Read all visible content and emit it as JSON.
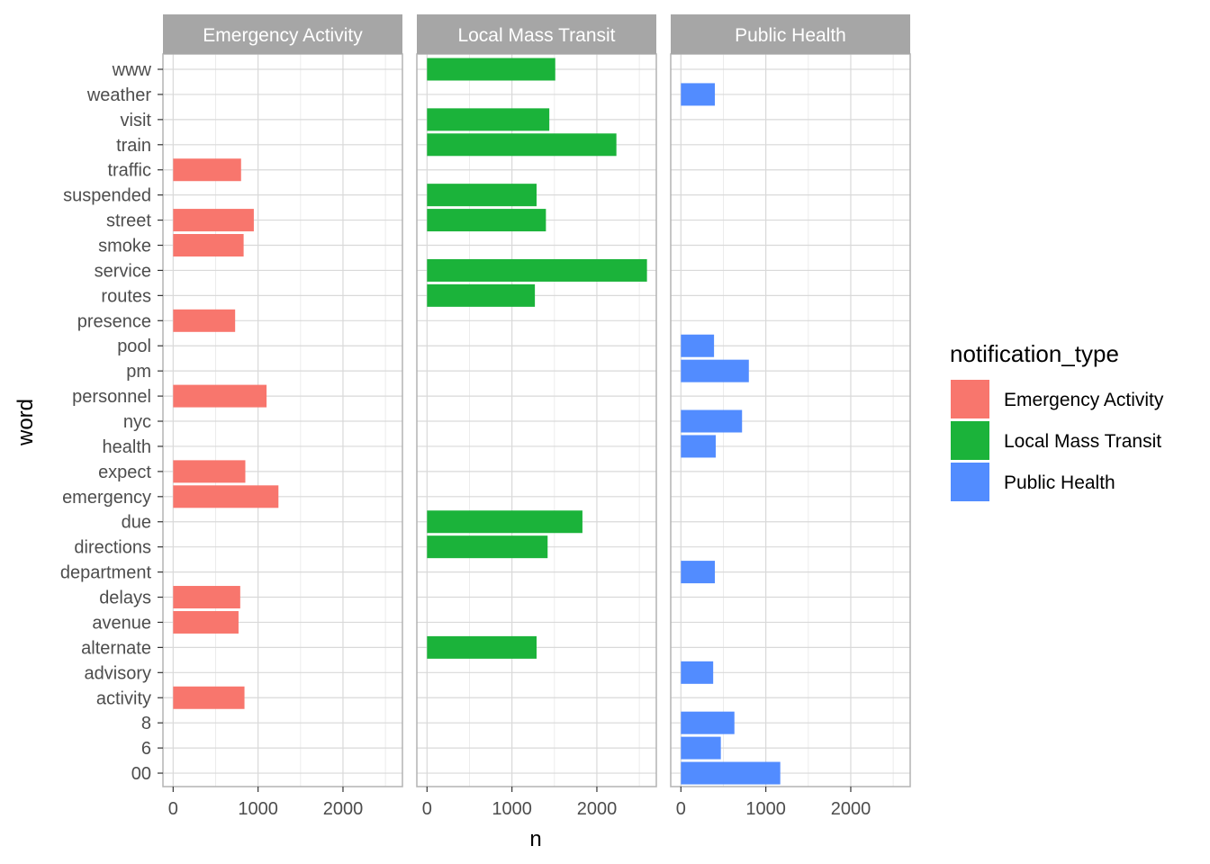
{
  "chart_data": {
    "type": "bar",
    "orientation": "horizontal",
    "facet_by": "notification_type",
    "xlabel": "n",
    "ylabel": "word",
    "xlim": [
      -120,
      2700
    ],
    "x_ticks": [
      0,
      1000,
      2000
    ],
    "grid": true,
    "legend_title": "notification_type",
    "legend_position": "right",
    "categories": [
      "www",
      "weather",
      "visit",
      "train",
      "traffic",
      "suspended",
      "street",
      "smoke",
      "service",
      "routes",
      "presence",
      "pool",
      "pm",
      "personnel",
      "nyc",
      "health",
      "expect",
      "emergency",
      "due",
      "directions",
      "department",
      "delays",
      "avenue",
      "alternate",
      "advisory",
      "activity",
      "8",
      "6",
      "00"
    ],
    "series": [
      {
        "name": "Emergency Activity",
        "color": "#F8766D",
        "points": [
          {
            "word": "traffic",
            "n": 800
          },
          {
            "word": "street",
            "n": 950
          },
          {
            "word": "smoke",
            "n": 830
          },
          {
            "word": "presence",
            "n": 730
          },
          {
            "word": "personnel",
            "n": 1100
          },
          {
            "word": "expect",
            "n": 850
          },
          {
            "word": "emergency",
            "n": 1240
          },
          {
            "word": "delays",
            "n": 790
          },
          {
            "word": "avenue",
            "n": 770
          },
          {
            "word": "activity",
            "n": 840
          }
        ]
      },
      {
        "name": "Local Mass Transit",
        "color": "#1BB33A",
        "points": [
          {
            "word": "www",
            "n": 1510
          },
          {
            "word": "visit",
            "n": 1440
          },
          {
            "word": "train",
            "n": 2230
          },
          {
            "word": "suspended",
            "n": 1290
          },
          {
            "word": "street",
            "n": 1400
          },
          {
            "word": "service",
            "n": 2590
          },
          {
            "word": "routes",
            "n": 1270
          },
          {
            "word": "due",
            "n": 1830
          },
          {
            "word": "directions",
            "n": 1420
          },
          {
            "word": "alternate",
            "n": 1290
          }
        ]
      },
      {
        "name": "Public Health",
        "color": "#528CFF",
        "points": [
          {
            "word": "weather",
            "n": 400
          },
          {
            "word": "pool",
            "n": 390
          },
          {
            "word": "pm",
            "n": 800
          },
          {
            "word": "nyc",
            "n": 720
          },
          {
            "word": "health",
            "n": 410
          },
          {
            "word": "department",
            "n": 400
          },
          {
            "word": "advisory",
            "n": 380
          },
          {
            "word": "8",
            "n": 630
          },
          {
            "word": "6",
            "n": 470
          },
          {
            "word": "00",
            "n": 1170
          }
        ]
      }
    ]
  }
}
